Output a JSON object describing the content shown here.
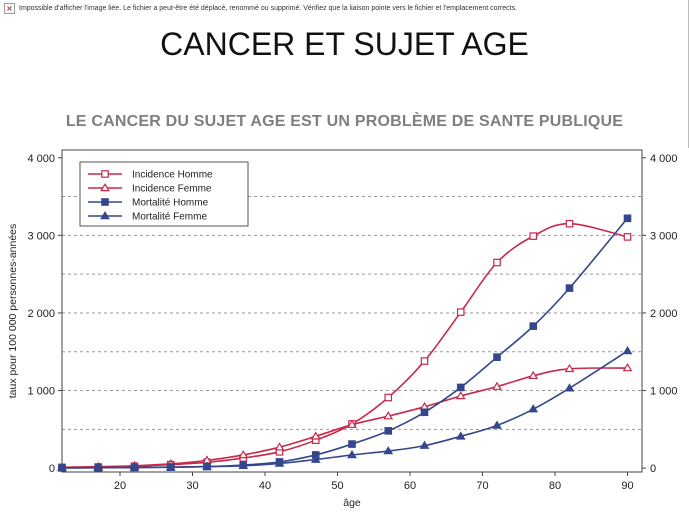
{
  "broken_image": {
    "icon": "broken-image-icon",
    "message": "Impossible d'afficher l'image liée. Le fichier a peut-être été déplacé, renommé ou supprimé. Vérifiez que la liaison pointe vers le fichier et l'emplacement corrects."
  },
  "slide": {
    "title": "CANCER ET SUJET AGE",
    "subtitle": "LE CANCER DU SUJET AGE EST UN PROBLÈME DE SANTE PUBLIQUE"
  },
  "colors": {
    "incidence": "#c8294a",
    "mortalite": "#34468c",
    "grid": "#9a9a9a"
  },
  "chart_data": {
    "type": "line",
    "xlabel": "âge",
    "ylabel": "taux pour 100 000 personnes-années",
    "xlim": [
      12,
      92
    ],
    "ylim": [
      -50,
      4100
    ],
    "x_ticks": [
      20,
      30,
      40,
      50,
      60,
      70,
      80,
      90
    ],
    "x_tick_labels": [
      "20",
      "30",
      "40",
      "50",
      "60",
      "70",
      "80",
      "90"
    ],
    "y_ticks": [
      0,
      1000,
      2000,
      3000,
      4000
    ],
    "y_tick_labels": [
      "0",
      "1 000",
      "2 000",
      "3 000",
      "4 000"
    ],
    "y_gridlines_dashed": [
      500,
      1000,
      1500,
      2000,
      2500,
      3000,
      3500
    ],
    "legend_position": "top-left",
    "x": [
      12,
      17,
      22,
      27,
      32,
      37,
      42,
      47,
      52,
      57,
      62,
      67,
      72,
      77,
      82,
      90
    ],
    "series": [
      {
        "name": "Incidence Homme",
        "color": "#c8294a",
        "marker": "square-open",
        "values": [
          10,
          15,
          25,
          45,
          75,
          130,
          210,
          360,
          570,
          910,
          1380,
          2010,
          2650,
          2990,
          3150,
          2980
        ]
      },
      {
        "name": "Incidence Femme",
        "color": "#c8294a",
        "marker": "triangle-open",
        "values": [
          10,
          18,
          30,
          55,
          100,
          170,
          270,
          410,
          560,
          670,
          790,
          930,
          1050,
          1190,
          1280,
          1290
        ]
      },
      {
        "name": "Mortalité Homme",
        "color": "#34468c",
        "marker": "square-filled",
        "values": [
          3,
          5,
          8,
          12,
          20,
          40,
          80,
          170,
          310,
          480,
          720,
          1040,
          1430,
          1830,
          2320,
          3220
        ]
      },
      {
        "name": "Mortalité Femme",
        "color": "#34468c",
        "marker": "triangle-filled",
        "values": [
          3,
          5,
          8,
          12,
          20,
          30,
          60,
          110,
          170,
          220,
          290,
          410,
          550,
          760,
          1030,
          1510
        ]
      }
    ]
  }
}
